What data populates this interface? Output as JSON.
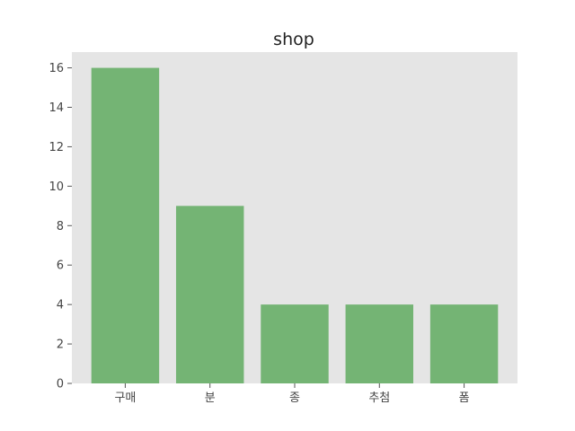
{
  "chart_data": {
    "type": "bar",
    "title": "shop",
    "xlabel": "",
    "ylabel": "",
    "categories": [
      "구매",
      "분",
      "종",
      "추첨",
      "폼"
    ],
    "values": [
      16,
      9,
      4,
      4,
      4
    ],
    "ylim": [
      0,
      16.8
    ],
    "yticks": [
      0,
      2,
      4,
      6,
      8,
      10,
      12,
      14,
      16
    ],
    "grid": false,
    "legend": "none",
    "colors": {
      "bar": "#74b474",
      "plot_background": "#e5e5e5",
      "page_background": "#ffffff"
    }
  }
}
